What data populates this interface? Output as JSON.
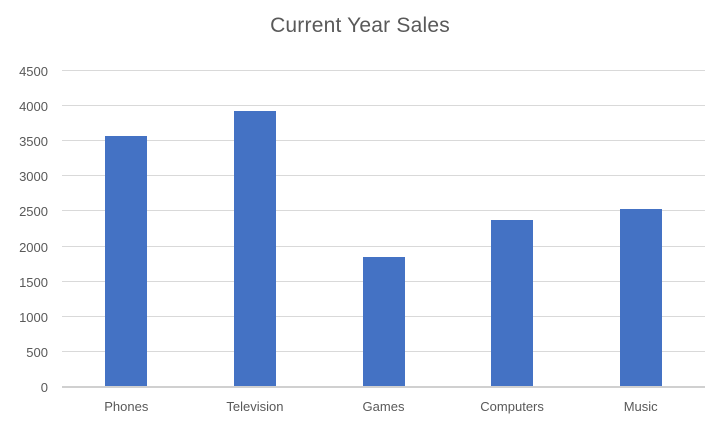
{
  "chart_data": {
    "type": "bar",
    "title": "Current Year Sales",
    "categories": [
      "Phones",
      "Television",
      "Games",
      "Computers",
      "Music"
    ],
    "values": [
      3570,
      3930,
      1850,
      2380,
      2530
    ],
    "xlabel": "",
    "ylabel": "",
    "ylim": [
      0,
      4500
    ],
    "ytick_step": 500,
    "ytick_labels": [
      "0",
      "500",
      "1000",
      "1500",
      "2000",
      "2500",
      "3000",
      "3500",
      "4000",
      "4500"
    ],
    "grid": true,
    "legend": false,
    "bar_color": "#4472C4",
    "title_color": "#595959",
    "axis_text_color": "#595959",
    "gridline_color": "#D9D9D9",
    "axis_line_color": "#D0D0D0",
    "background_color": "#FFFFFF"
  }
}
